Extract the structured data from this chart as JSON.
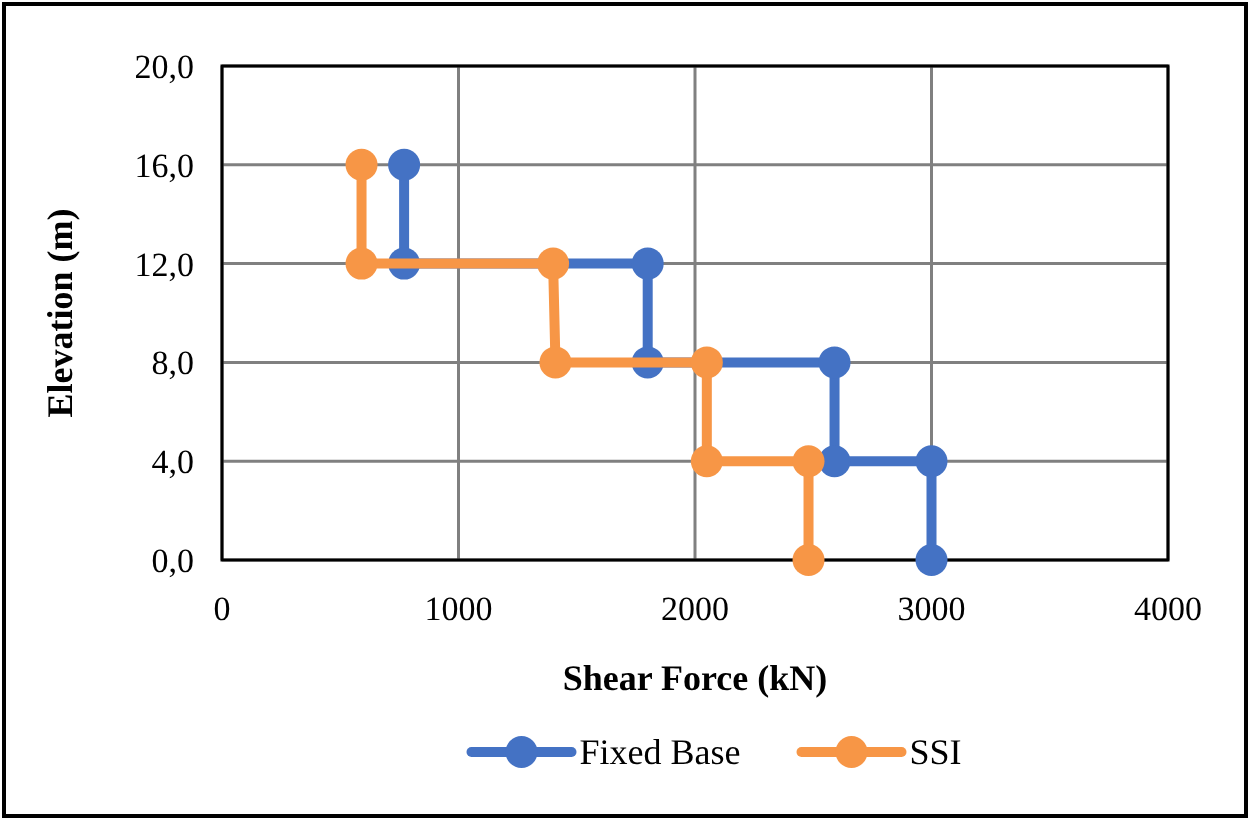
{
  "chart_data": {
    "type": "line",
    "xlabel": "Shear Force (kN)",
    "ylabel": "Elevation (m)",
    "xlim": [
      0,
      4000
    ],
    "xticks": [
      0,
      1000,
      2000,
      3000,
      4000
    ],
    "ylim": [
      0,
      20
    ],
    "yticks": [
      {
        "value": 0,
        "label": "0,0"
      },
      {
        "value": 4,
        "label": "4,0"
      },
      {
        "value": 8,
        "label": "8,0"
      },
      {
        "value": 12,
        "label": "12,0"
      },
      {
        "value": 16,
        "label": "16,0"
      },
      {
        "value": 20,
        "label": "20,0"
      }
    ],
    "grid": true,
    "legend": "bottom",
    "marker": "circle",
    "line_style": "solid",
    "series": [
      {
        "name": "Fixed Base",
        "color": "#4472c4",
        "x": [
          770,
          770,
          1800,
          1800,
          2590,
          2590,
          3000,
          3000
        ],
        "values": [
          16,
          12,
          12,
          8,
          8,
          4,
          4,
          0
        ]
      },
      {
        "name": "SSI",
        "color": "#f79646",
        "x": [
          590,
          590,
          1400,
          1410,
          2050,
          2050,
          2480,
          2480
        ],
        "values": [
          16,
          12,
          12,
          8,
          8,
          4,
          4,
          0
        ]
      }
    ]
  }
}
